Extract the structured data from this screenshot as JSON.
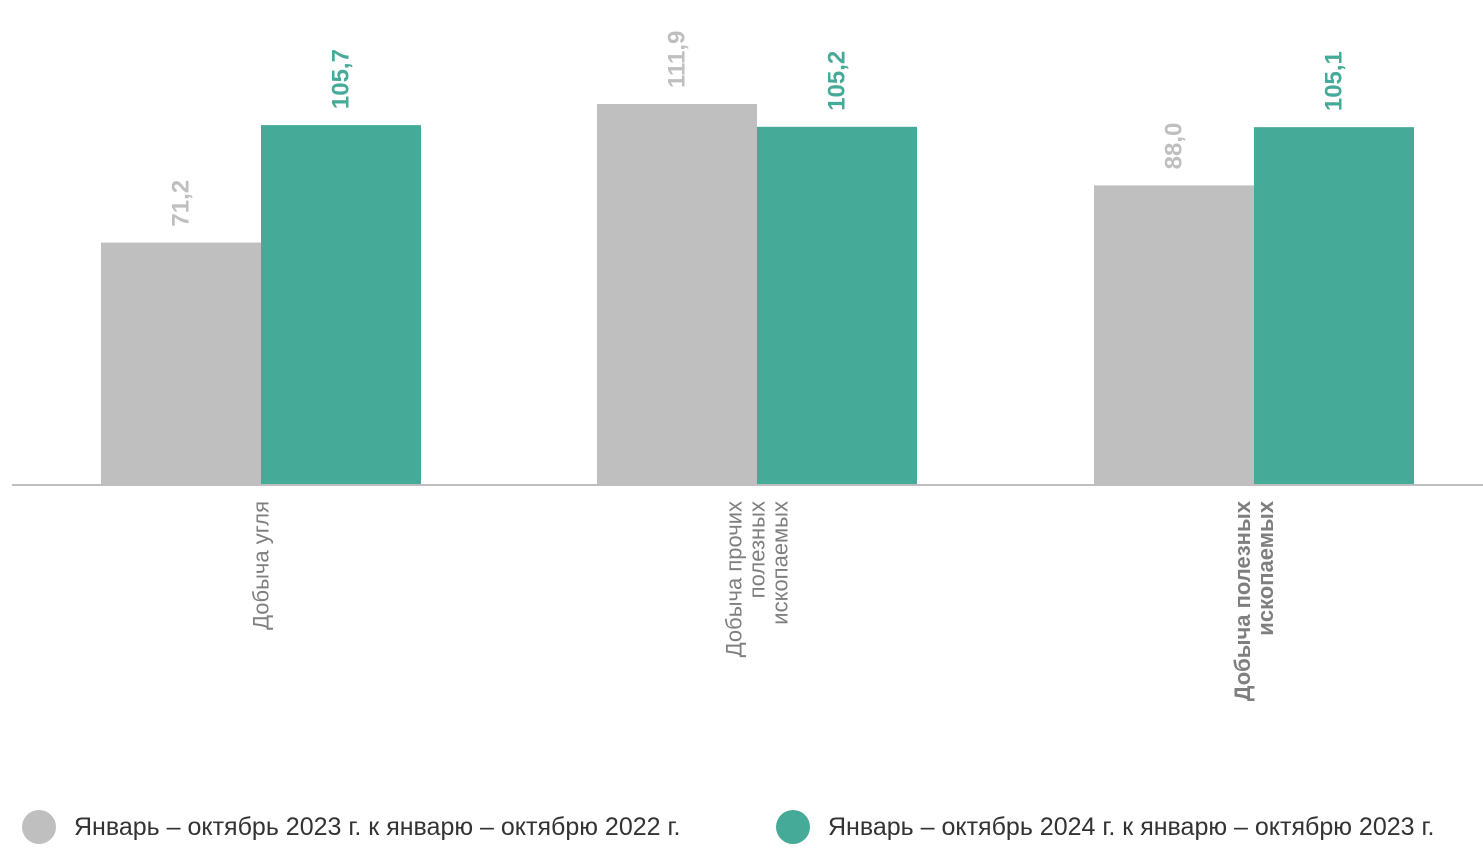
{
  "chart_data": {
    "type": "bar",
    "categories": [
      {
        "lines": [
          "Добыча угля"
        ],
        "bold": false
      },
      {
        "lines": [
          "Добыча прочих",
          "полезных",
          "ископаемых"
        ],
        "bold": false
      },
      {
        "lines": [
          "Добыча полезных",
          "ископаемых"
        ],
        "bold": true
      }
    ],
    "series": [
      {
        "name": "Январь – октябрь 2023 г. к январю – октябрю 2022 г.",
        "values": [
          71.2,
          111.9,
          88.0
        ],
        "labels": [
          "71,2",
          "111,9",
          "88,0"
        ],
        "color": "#bfbfbf"
      },
      {
        "name": "Январь – октябрь 2024 г. к январю – октябрю 2023 г.",
        "values": [
          105.7,
          105.2,
          105.1
        ],
        "labels": [
          "105,7",
          "105,2",
          "105,1"
        ],
        "color": "#46aa98"
      }
    ],
    "ylim": [
      0,
      135
    ],
    "grid": false,
    "legend_position": "bottom",
    "axis_color": "#bfbfbf",
    "category_label_color": "#7f7f7f"
  }
}
